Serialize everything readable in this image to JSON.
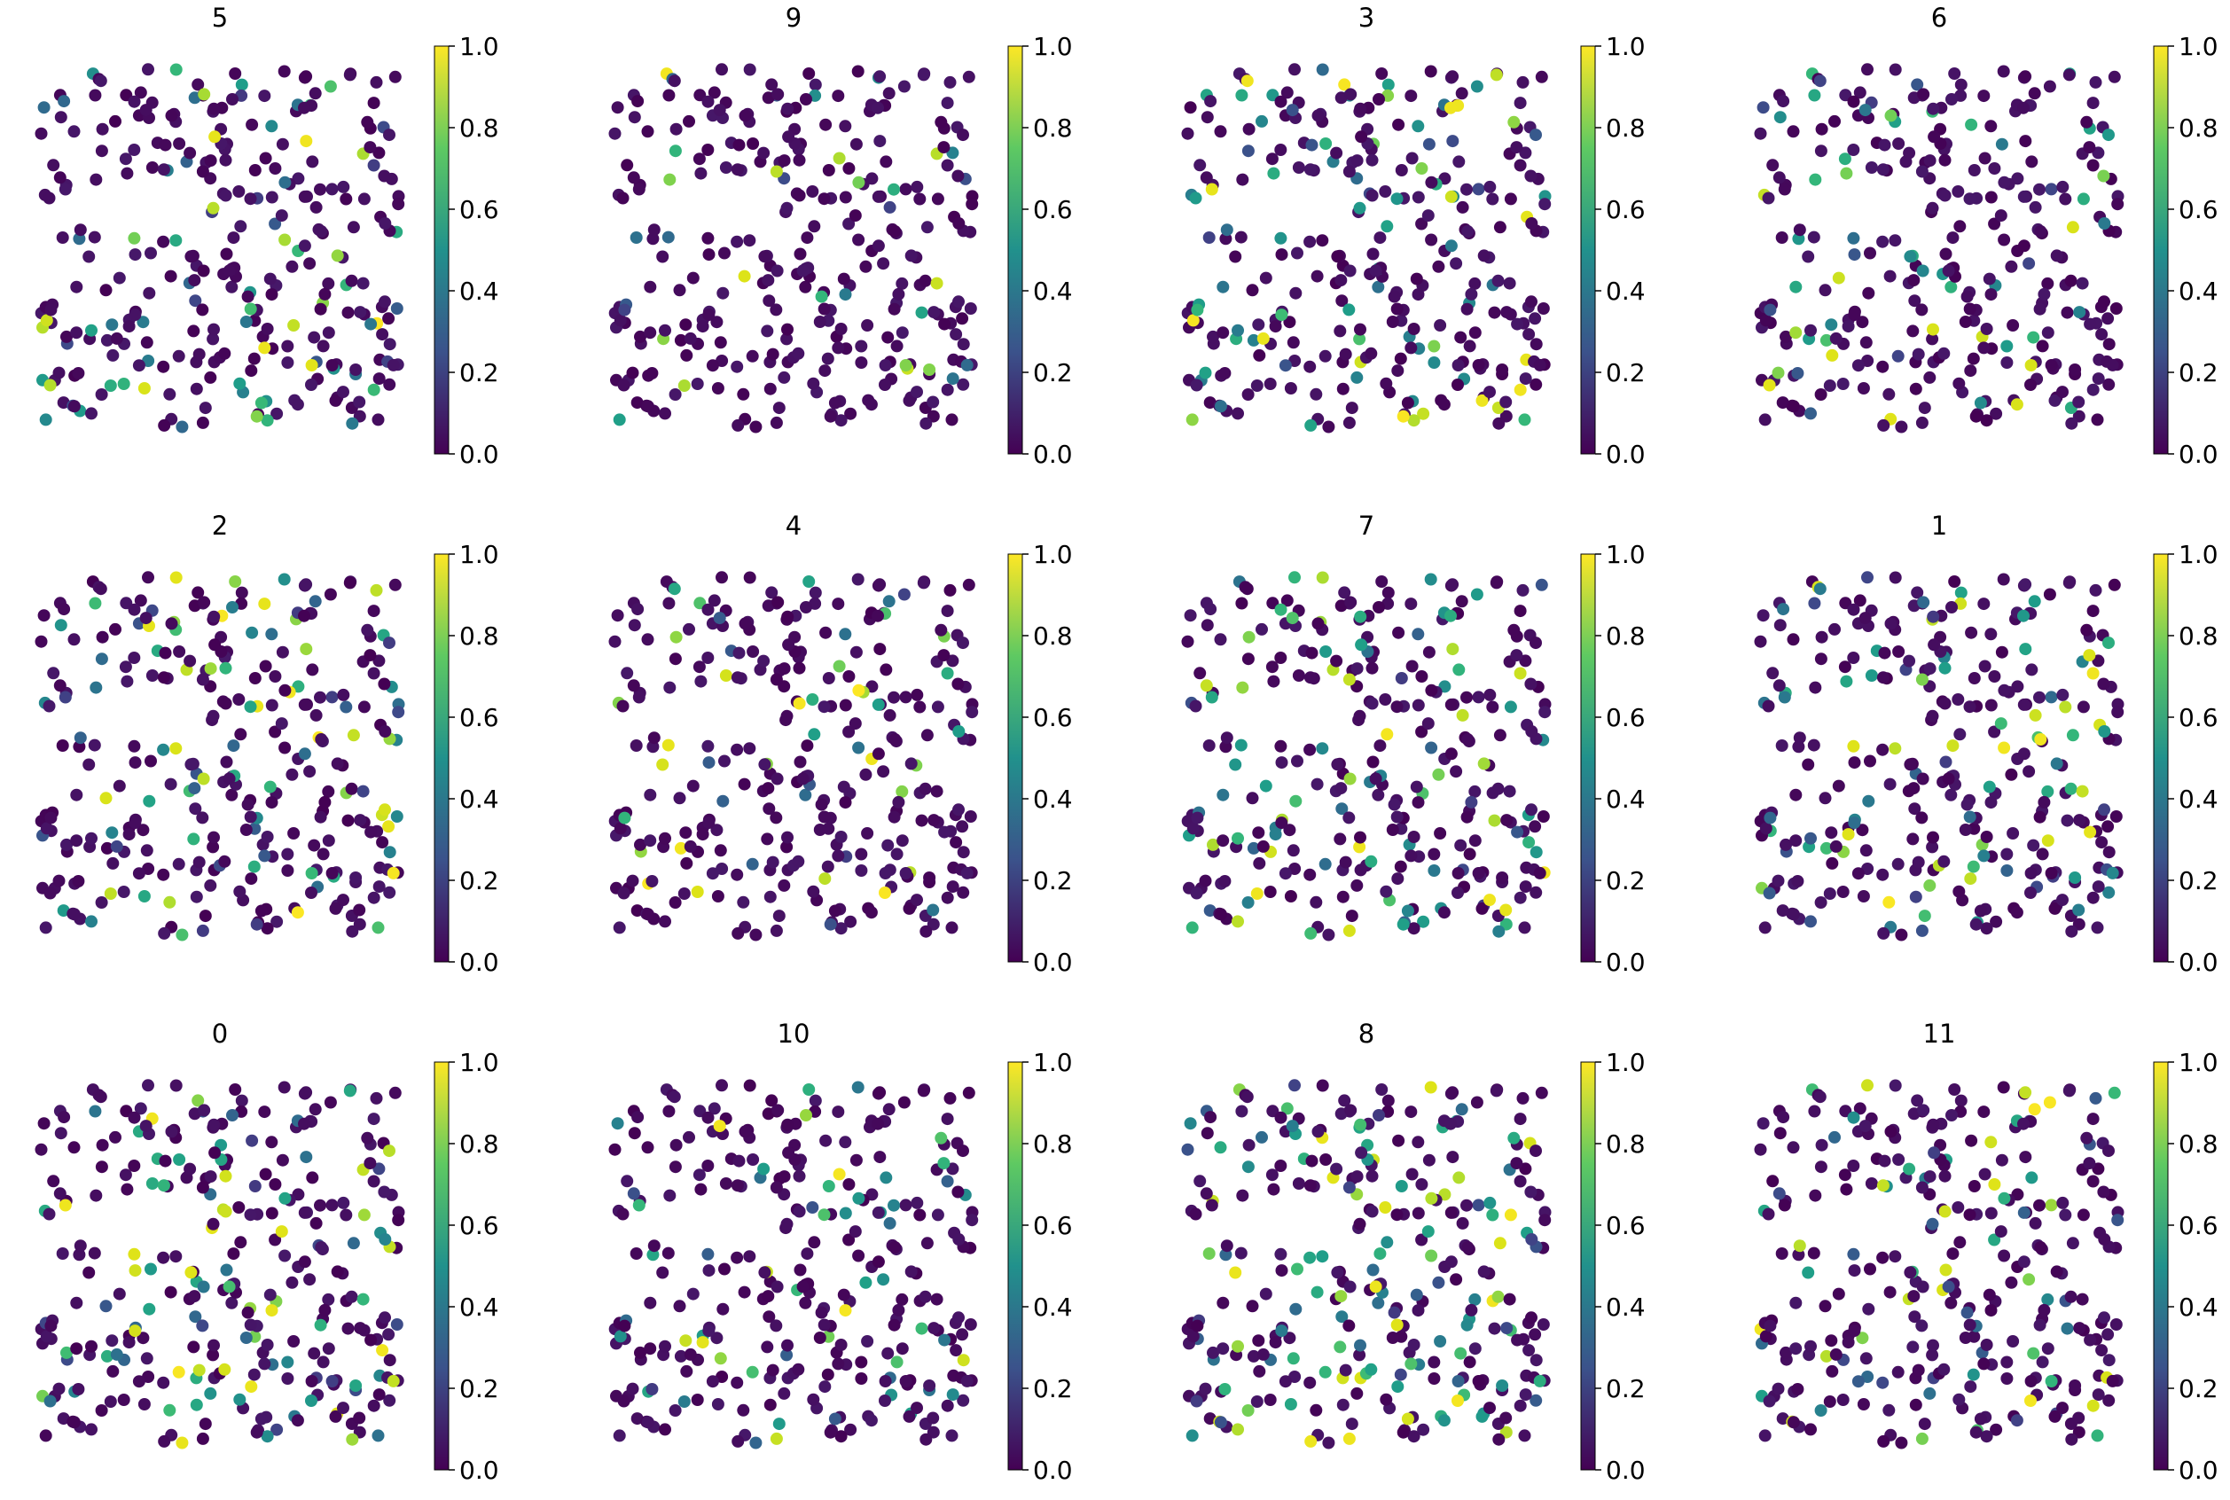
{
  "colormap": "viridis",
  "colorbar": {
    "range": [
      0.0,
      1.0
    ],
    "ticks": [
      "0.0",
      "0.2",
      "0.4",
      "0.6",
      "0.8",
      "1.0"
    ]
  },
  "chart_data": [
    {
      "type": "scatter",
      "title": "5",
      "value_range": [
        0,
        1
      ],
      "point_count": 300,
      "seed": 5,
      "bright_fraction": 0.07
    },
    {
      "type": "scatter",
      "title": "9",
      "value_range": [
        0,
        1
      ],
      "point_count": 300,
      "seed": 9,
      "bright_fraction": 0.04
    },
    {
      "type": "scatter",
      "title": "3",
      "value_range": [
        0,
        1
      ],
      "point_count": 300,
      "seed": 3,
      "bright_fraction": 0.1
    },
    {
      "type": "scatter",
      "title": "6",
      "value_range": [
        0,
        1
      ],
      "point_count": 300,
      "seed": 6,
      "bright_fraction": 0.05
    },
    {
      "type": "scatter",
      "title": "2",
      "value_range": [
        0,
        1
      ],
      "point_count": 300,
      "seed": 2,
      "bright_fraction": 0.08
    },
    {
      "type": "scatter",
      "title": "4",
      "value_range": [
        0,
        1
      ],
      "point_count": 300,
      "seed": 4,
      "bright_fraction": 0.06
    },
    {
      "type": "scatter",
      "title": "7",
      "value_range": [
        0,
        1
      ],
      "point_count": 300,
      "seed": 7,
      "bright_fraction": 0.08
    },
    {
      "type": "scatter",
      "title": "1",
      "value_range": [
        0,
        1
      ],
      "point_count": 300,
      "seed": 1,
      "bright_fraction": 0.09
    },
    {
      "type": "scatter",
      "title": "0",
      "value_range": [
        0,
        1
      ],
      "point_count": 300,
      "seed": 0,
      "bright_fraction": 0.1
    },
    {
      "type": "scatter",
      "title": "10",
      "value_range": [
        0,
        1
      ],
      "point_count": 300,
      "seed": 10,
      "bright_fraction": 0.06
    },
    {
      "type": "scatter",
      "title": "8",
      "value_range": [
        0,
        1
      ],
      "point_count": 300,
      "seed": 8,
      "bright_fraction": 0.12
    },
    {
      "type": "scatter",
      "title": "11",
      "value_range": [
        0,
        1
      ],
      "point_count": 300,
      "seed": 11,
      "bright_fraction": 0.07
    }
  ]
}
